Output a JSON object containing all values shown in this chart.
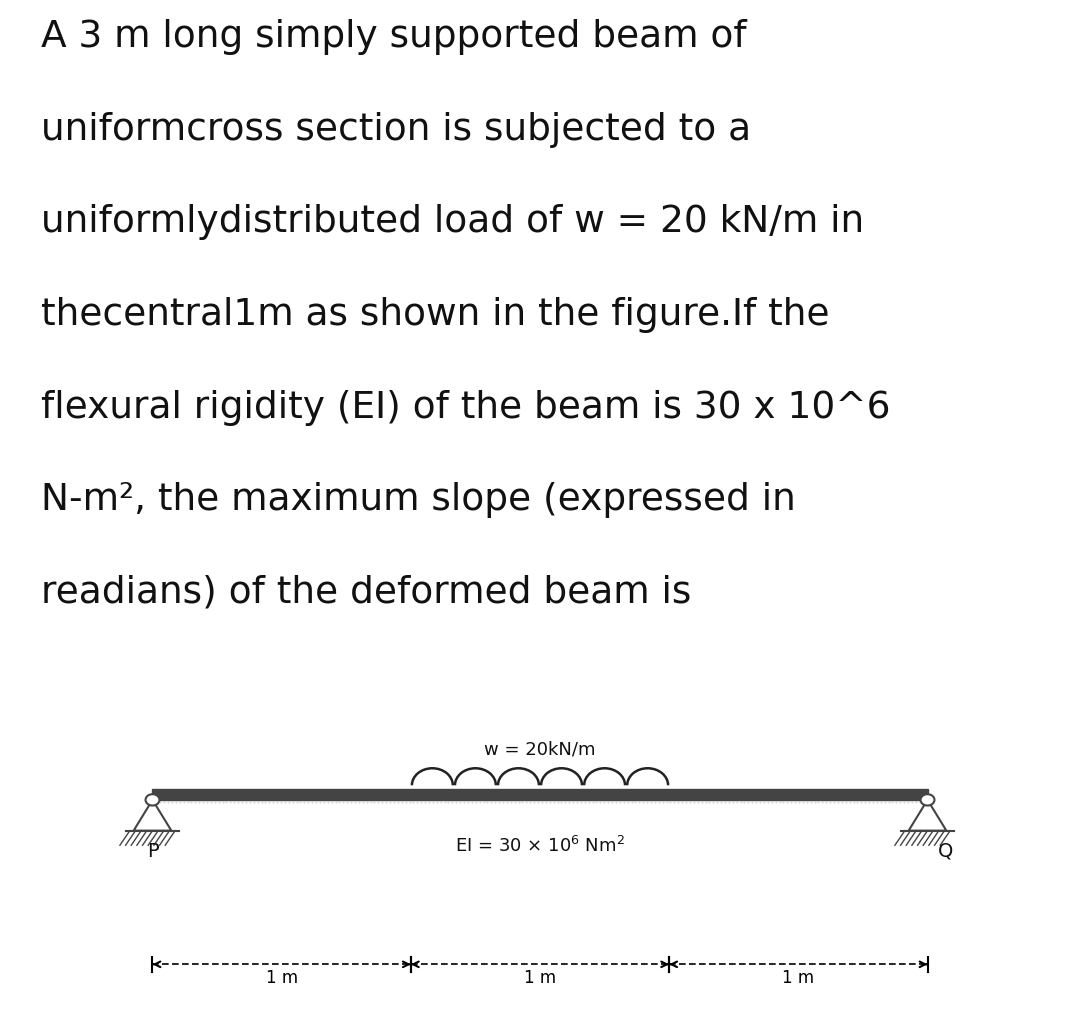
{
  "title_lines": [
    "A 3 m long simply supported beam of",
    "uniformcross section is subjected to a",
    "uniformlydistributed load of w = 20 kN/m in",
    "thecentral1m as shown in the figure.If the",
    "flexural rigidity (EI) of the beam is 30 x 10^6",
    "N-m², the maximum slope (expressed in",
    "readians) of the deformed beam is"
  ],
  "title_fontsize": 27,
  "background_color": "#ffffff",
  "box_background": "#ffffff",
  "box_edge_color": "#cccccc",
  "beam_color": "#444444",
  "text_color": "#111111",
  "load_label": "w = 20kN/m",
  "P_label": "P",
  "Q_label": "Q",
  "dim_label": "1 m",
  "support_color": "#444444",
  "load_color": "#222222",
  "hatch_color": "#888888"
}
